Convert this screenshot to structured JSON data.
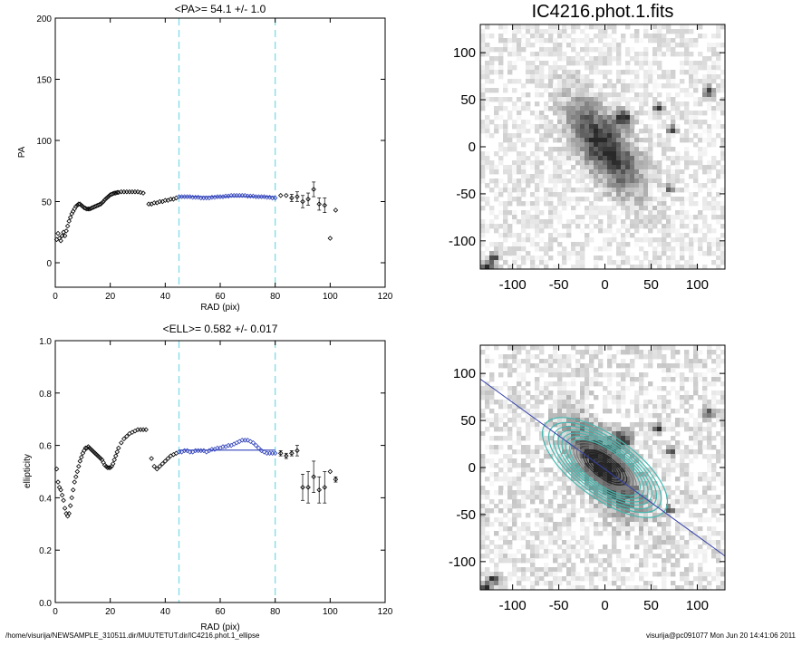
{
  "footer": {
    "path": "/home/visurija/NEWSAMPLE_310511.dir/MUUTETUT.dir/IC4216.phot.1_ellipse",
    "stamp": "visurija@pc091077  Mon Jun 20 14:41:06 2011"
  },
  "colors": {
    "fit": "#3344bb",
    "marker": "#000000",
    "cyan": "#7fdde6",
    "contour": "#44b8b0",
    "line": "#3340aa"
  },
  "chart_data": [
    {
      "type": "scatter",
      "title": "<PA>=  54.1 +/-   1.0",
      "xlabel": "RAD (pix)",
      "ylabel": "PA",
      "xlim": [
        0,
        120
      ],
      "ylim": [
        -20,
        200
      ],
      "xticks": [
        0,
        20,
        40,
        60,
        80,
        100,
        120
      ],
      "yticks": [
        0,
        50,
        100,
        150,
        200
      ],
      "vlines": [
        45,
        80
      ],
      "grid": false,
      "series": [
        {
          "x": [
            0.5,
            1.0,
            1.5,
            2.0,
            2.5,
            3.0,
            3.5,
            4.0,
            4.5,
            5.0,
            5.5,
            6.0,
            6.5,
            7.0,
            7.5,
            8.0,
            8.5,
            9.0,
            9.5,
            10.0,
            10.5,
            11.0,
            11.5,
            12.0,
            12.5,
            13.0,
            13.5,
            14.0,
            14.5,
            15.0,
            15.5,
            16.0,
            16.5,
            17.0,
            17.5,
            18.0,
            18.5,
            19.0,
            19.5,
            20.0,
            20.5,
            21.0,
            21.5,
            22.0,
            22.5,
            23.0,
            24.0,
            25.0,
            26.0,
            27.0,
            28.0,
            29.0,
            30.0,
            31.0,
            32.0
          ],
          "y": [
            19,
            24,
            20,
            18,
            22,
            25,
            22,
            26,
            30,
            34,
            37,
            40,
            42,
            44,
            46,
            47,
            48,
            48,
            47,
            46,
            45,
            44.5,
            44,
            44,
            44,
            44.5,
            45,
            45.5,
            46,
            46.5,
            47,
            47.5,
            48,
            49,
            50,
            51.5,
            52.5,
            53.5,
            54.5,
            55.5,
            56,
            56.5,
            57,
            57,
            57.5,
            57.5,
            58,
            58,
            58,
            58,
            58,
            58,
            58,
            57.5,
            57
          ]
        },
        {
          "x": [
            34,
            35,
            36,
            37,
            38,
            39,
            40,
            41,
            42,
            43,
            44
          ],
          "y": [
            48,
            48,
            49,
            49,
            50,
            50,
            51,
            51,
            52,
            52,
            53
          ]
        },
        {
          "x": [
            45,
            46,
            47,
            48,
            49,
            50,
            51,
            52,
            53,
            54,
            55,
            56,
            57,
            58,
            59,
            60,
            61,
            62,
            63,
            64,
            65,
            66,
            67,
            68,
            69,
            70,
            71,
            72,
            73,
            74,
            75,
            76,
            77,
            78,
            79,
            80
          ],
          "y": [
            54,
            54,
            54,
            54,
            54,
            53.5,
            53.5,
            53.5,
            53,
            53,
            53,
            53,
            53.5,
            53.5,
            54,
            54,
            54,
            54.5,
            54.5,
            55,
            55,
            55,
            55,
            55,
            55,
            54.5,
            54.5,
            54.5,
            54,
            54,
            54,
            54,
            53.5,
            53.5,
            53,
            53
          ]
        },
        {
          "x": [
            82,
            84,
            86,
            88,
            90,
            92,
            94,
            96,
            98,
            100,
            102
          ],
          "y": [
            55,
            55,
            53,
            54,
            50,
            52,
            60,
            48,
            47,
            20,
            43
          ],
          "err": [
            0,
            0,
            3,
            4,
            5,
            5,
            6,
            5,
            6,
            0,
            0
          ]
        }
      ],
      "fit": {
        "x": [
          45,
          80
        ],
        "y": [
          54.1,
          54.1
        ]
      }
    },
    {
      "type": "scatter",
      "title": "<ELL>= 0.582 +/-  0.017",
      "xlabel": "RAD (pix)",
      "ylabel": "ellipticity",
      "xlim": [
        0,
        120
      ],
      "ylim": [
        0.0,
        1.0
      ],
      "xticks": [
        0,
        20,
        40,
        60,
        80,
        100,
        120
      ],
      "yticks": [
        0.0,
        0.2,
        0.4,
        0.6,
        0.8,
        1.0
      ],
      "vlines": [
        45,
        80
      ],
      "grid": false,
      "series": [
        {
          "x": [
            0.5,
            1.0,
            1.5,
            2.0,
            2.5,
            3.0,
            3.5,
            4.0,
            4.5,
            5.0,
            5.5,
            6.0,
            6.5,
            7.0,
            7.5,
            8.0,
            8.5,
            9.0,
            9.5,
            10.0,
            10.5,
            11.0,
            11.5,
            12.0,
            12.5,
            13.0,
            13.5,
            14.0,
            14.5,
            15.0,
            15.5,
            16.0,
            16.5,
            17.0,
            17.5,
            18.0,
            18.5,
            19.0,
            19.5,
            20.0,
            20.5,
            21.0,
            21.5,
            22.0,
            22.5,
            23.0,
            24.0,
            25.0,
            26.0,
            27.0,
            28.0,
            29.0,
            30.0,
            31.0,
            32.0,
            33.0
          ],
          "y": [
            0.51,
            0.46,
            0.44,
            0.43,
            0.41,
            0.39,
            0.36,
            0.34,
            0.33,
            0.34,
            0.37,
            0.4,
            0.43,
            0.46,
            0.48,
            0.5,
            0.52,
            0.54,
            0.555,
            0.57,
            0.58,
            0.59,
            0.59,
            0.595,
            0.59,
            0.585,
            0.58,
            0.575,
            0.57,
            0.565,
            0.56,
            0.555,
            0.55,
            0.545,
            0.535,
            0.525,
            0.52,
            0.515,
            0.515,
            0.515,
            0.52,
            0.53,
            0.545,
            0.56,
            0.575,
            0.59,
            0.61,
            0.625,
            0.635,
            0.645,
            0.65,
            0.655,
            0.66,
            0.66,
            0.66,
            0.66
          ]
        },
        {
          "x": [
            35,
            36,
            37,
            38,
            39,
            40,
            41,
            42,
            43,
            44
          ],
          "y": [
            0.55,
            0.52,
            0.51,
            0.52,
            0.53,
            0.54,
            0.55,
            0.56,
            0.565,
            0.57
          ]
        },
        {
          "x": [
            45,
            46,
            47,
            48,
            49,
            50,
            51,
            52,
            53,
            54,
            55,
            56,
            57,
            58,
            59,
            60,
            61,
            62,
            63,
            64,
            65,
            66,
            67,
            68,
            69,
            70,
            71,
            72,
            73,
            74,
            75,
            76,
            77,
            78,
            79,
            80
          ],
          "y": [
            0.575,
            0.575,
            0.58,
            0.58,
            0.575,
            0.575,
            0.58,
            0.58,
            0.58,
            0.58,
            0.575,
            0.58,
            0.585,
            0.585,
            0.59,
            0.59,
            0.595,
            0.595,
            0.6,
            0.6,
            0.605,
            0.61,
            0.615,
            0.62,
            0.62,
            0.62,
            0.615,
            0.61,
            0.6,
            0.59,
            0.58,
            0.575,
            0.57,
            0.57,
            0.57,
            0.57
          ]
        },
        {
          "x": [
            82,
            84,
            86,
            88,
            90,
            92,
            94,
            96,
            98,
            100,
            102
          ],
          "y": [
            0.57,
            0.56,
            0.57,
            0.58,
            0.44,
            0.44,
            0.48,
            0.43,
            0.44,
            0.5,
            0.47
          ],
          "err": [
            0.01,
            0.01,
            0.01,
            0.02,
            0.05,
            0.06,
            0.06,
            0.05,
            0.06,
            0,
            0.01
          ]
        }
      ],
      "fit": {
        "x": [
          45,
          80
        ],
        "y": [
          0.582,
          0.582
        ]
      }
    },
    {
      "type": "heatmap",
      "title": "IC4216.phot.1.fits",
      "xlim": [
        -135,
        130
      ],
      "ylim": [
        -130,
        130
      ],
      "xticks": [
        -100,
        -50,
        0,
        50,
        100
      ],
      "yticks": [
        -100,
        -50,
        0,
        50,
        100
      ],
      "galaxy": {
        "center": [
          0,
          0
        ],
        "major_axis": 70,
        "minor_axis": 30,
        "pa_deg": 54.1
      },
      "stars": [
        [
          20,
          30,
          9
        ],
        [
          58,
          42,
          5
        ],
        [
          72,
          18,
          5
        ],
        [
          -128,
          -128,
          7
        ],
        [
          -120,
          -118,
          5
        ],
        [
          112,
          58,
          6
        ],
        [
          70,
          -45,
          4
        ]
      ]
    },
    {
      "type": "heatmap",
      "title": "",
      "xlim": [
        -135,
        130
      ],
      "ylim": [
        -130,
        130
      ],
      "xticks": [
        -100,
        -50,
        0,
        50,
        100
      ],
      "yticks": [
        -100,
        -50,
        0,
        50,
        100
      ],
      "line": {
        "x": [
          -135,
          130
        ],
        "y": [
          94,
          -94
        ]
      },
      "contours": {
        "center": [
          0,
          0
        ],
        "pa_deg": 54.1,
        "ellipticity": 0.582,
        "major_axes": [
          8,
          12,
          16,
          20,
          24,
          28,
          32,
          36,
          40,
          45,
          50,
          55,
          60,
          66,
          72,
          80
        ]
      }
    }
  ]
}
